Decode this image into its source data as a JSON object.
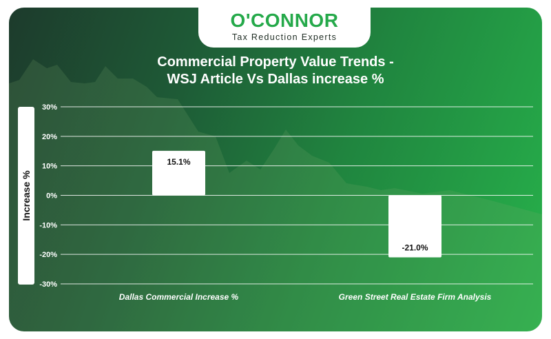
{
  "header": {
    "brand_name": "O'CONNOR",
    "tagline": "Tax Reduction Experts",
    "brand_color": "#25a94a"
  },
  "chart_data": {
    "type": "bar",
    "title_line1": "Commercial Property Value Trends -",
    "title_line2": "WSJ Article Vs Dallas increase %",
    "ylabel": "Increase %",
    "xlabel": "",
    "categories": [
      "Dallas Commercial Increase %",
      "Green Street Real Estate Firm Analysis"
    ],
    "values": [
      15.1,
      -21.0
    ],
    "data_labels": [
      "15.1%",
      "-21.0%"
    ],
    "ylim": [
      -30,
      30
    ],
    "y_ticks": [
      30,
      20,
      10,
      0,
      -10,
      -20,
      -30
    ],
    "y_tick_labels": [
      "30%",
      "20%",
      "10%",
      "0%",
      "-10%",
      "-20%",
      "-30%"
    ],
    "grid": true,
    "legend": "none",
    "bar_color": "#ffffff",
    "background": "green gradient with faint mountain silhouette"
  }
}
